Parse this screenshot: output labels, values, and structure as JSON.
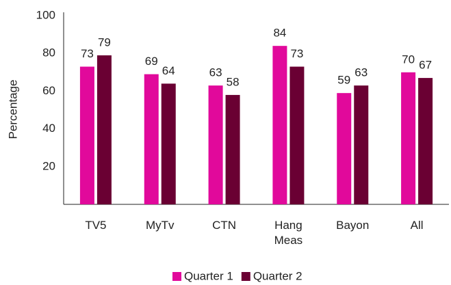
{
  "chart_data": {
    "type": "bar",
    "categories": [
      "TV5",
      "MyTv",
      "CTN",
      "Hang Meas",
      "Bayon",
      "All"
    ],
    "series": [
      {
        "name": "Quarter 1",
        "color": "#e1099b",
        "values": [
          73,
          69,
          63,
          84,
          59,
          70
        ]
      },
      {
        "name": "Quarter 2",
        "color": "#6a0033",
        "values": [
          79,
          64,
          58,
          73,
          63,
          67
        ]
      }
    ],
    "y_label": "Percentage",
    "ylim": [
      0,
      100
    ],
    "yticks": [
      20,
      40,
      60,
      80,
      100
    ],
    "grid": false,
    "legend": "bottom"
  }
}
